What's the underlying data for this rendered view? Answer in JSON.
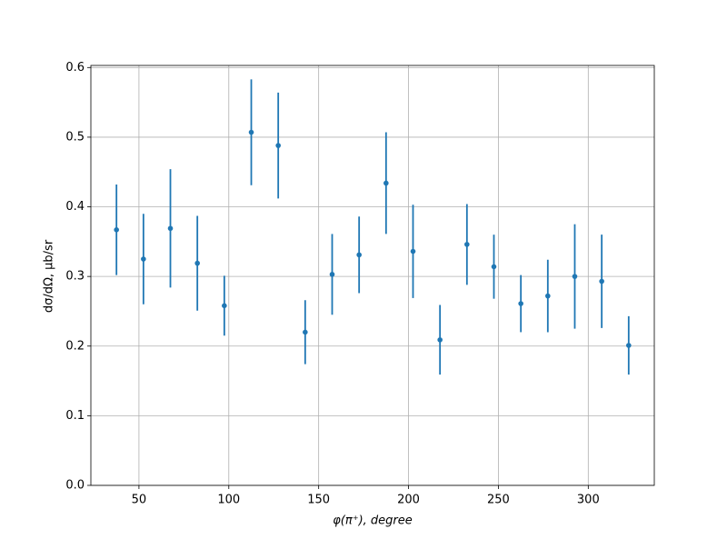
{
  "chart_data": {
    "type": "errorbar",
    "xlabel": "φ(π⁺), degree",
    "ylabel": "dσ/dΩ, μb/sr",
    "x": [
      37.5,
      52.5,
      67.5,
      82.5,
      97.5,
      112.5,
      127.5,
      142.5,
      157.5,
      172.5,
      187.5,
      202.5,
      217.5,
      232.5,
      247.5,
      262.5,
      277.5,
      292.5,
      307.5,
      322.5
    ],
    "series": [
      {
        "color": "#1f77b4",
        "values": [
          0.367,
          0.325,
          0.369,
          0.319,
          0.258,
          0.507,
          0.488,
          0.22,
          0.303,
          0.331,
          0.434,
          0.336,
          0.209,
          0.346,
          0.314,
          0.261,
          0.272,
          0.3,
          0.293,
          0.201
        ],
        "errors": [
          0.065,
          0.065,
          0.085,
          0.068,
          0.043,
          0.076,
          0.076,
          0.046,
          0.058,
          0.055,
          0.073,
          0.067,
          0.05,
          0.058,
          0.046,
          0.041,
          0.052,
          0.075,
          0.067,
          0.042
        ]
      }
    ],
    "xlim": [
      23.25,
      336.75
    ],
    "ylim": [
      0,
      0.603
    ],
    "xticks": [
      50,
      100,
      150,
      200,
      250,
      300
    ],
    "yticks": [
      {
        "value": 0,
        "label": "0.0"
      },
      0.1,
      0.2,
      0.3,
      0.4,
      0.5,
      0.6
    ],
    "grid": true
  }
}
